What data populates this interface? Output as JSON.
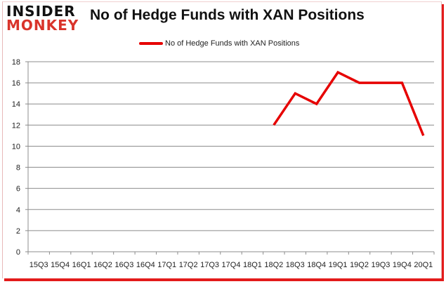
{
  "header": {
    "logo_top": "INSIDER",
    "logo_bottom": "MONKEY",
    "title": "No of Hedge Funds with XAN Positions"
  },
  "legend": {
    "label": "No of Hedge Funds with XAN Positions",
    "color": "#e60000"
  },
  "chart_data": {
    "type": "line",
    "title": "No of Hedge Funds with XAN Positions",
    "xlabel": "",
    "ylabel": "",
    "categories": [
      "15Q3",
      "15Q4",
      "16Q1",
      "16Q2",
      "16Q3",
      "16Q4",
      "17Q1",
      "17Q2",
      "17Q3",
      "17Q4",
      "18Q1",
      "18Q2",
      "18Q3",
      "18Q4",
      "19Q1",
      "19Q2",
      "19Q3",
      "19Q4",
      "20Q1"
    ],
    "series": [
      {
        "name": "No of Hedge Funds with XAN Positions",
        "color": "#e60000",
        "values": [
          null,
          null,
          null,
          null,
          null,
          null,
          null,
          null,
          null,
          null,
          null,
          12,
          15,
          14,
          17,
          16,
          16,
          16,
          11
        ]
      }
    ],
    "ylim": [
      0,
      18
    ],
    "yticks": [
      0,
      2,
      4,
      6,
      8,
      10,
      12,
      14,
      16,
      18
    ],
    "grid": true,
    "legend_position": "top"
  },
  "colors": {
    "accent": "#e31b1b",
    "grid": "#8c8c8c"
  }
}
